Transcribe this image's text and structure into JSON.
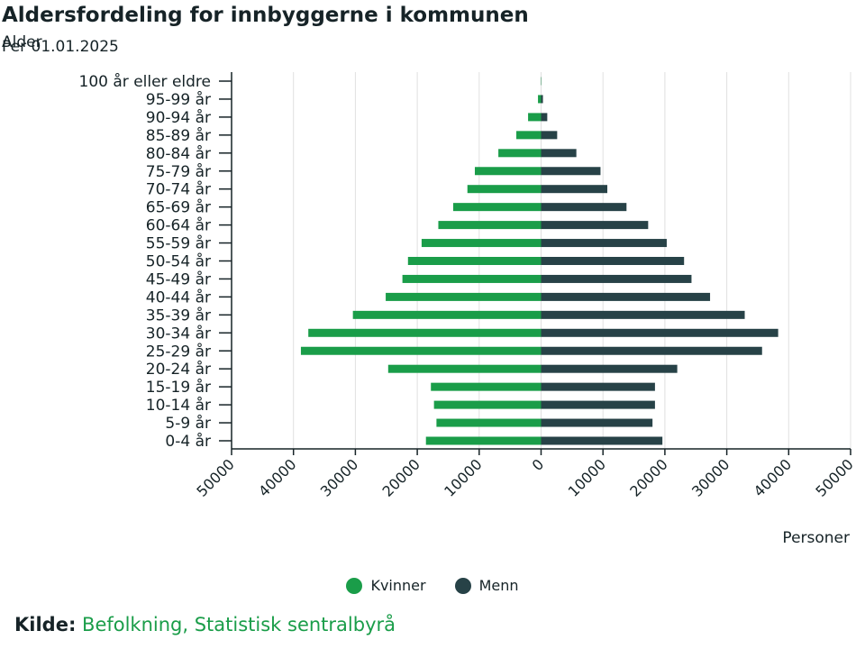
{
  "header": {
    "title": "Aldersfordeling for innbyggerne i kommunen",
    "subtitle": "Per 01.01.2025"
  },
  "colors": {
    "female": "#1a9d49",
    "male": "#274247",
    "grid": "#e0e0e0",
    "axis": "#162327"
  },
  "chart_data": {
    "type": "bar",
    "orientation": "horizontal-population-pyramid",
    "title": "Aldersfordeling for innbyggerne i kommunen",
    "subtitle": "Per 01.01.2025",
    "ylabel": "Alder",
    "xlabel": "Personer",
    "xlim": [
      -50000,
      50000
    ],
    "xticks": [
      -50000,
      -40000,
      -30000,
      -20000,
      -10000,
      0,
      10000,
      20000,
      30000,
      40000,
      50000
    ],
    "xtick_labels": [
      "50000",
      "40000",
      "30000",
      "20000",
      "10000",
      "0",
      "10000",
      "20000",
      "30000",
      "40000",
      "50000"
    ],
    "categories": [
      "100 år eller eldre",
      "95-99 år",
      "90-94 år",
      "85-89 år",
      "80-84 år",
      "75-79 år",
      "70-74 år",
      "65-69 år",
      "60-64 år",
      "55-59 år",
      "50-54 år",
      "45-49 år",
      "40-44 år",
      "35-39 år",
      "30-34 år",
      "25-29 år",
      "20-24 år",
      "15-19 år",
      "10-14 år",
      "5-9 år",
      "0-4 år"
    ],
    "series": [
      {
        "name": "Kvinner",
        "values": [
          50,
          500,
          2100,
          4000,
          6900,
          10700,
          11900,
          14200,
          16600,
          19300,
          21500,
          22400,
          25100,
          30400,
          37600,
          38800,
          24700,
          17800,
          17300,
          16900,
          18600
        ]
      },
      {
        "name": "Menn",
        "values": [
          20,
          300,
          1000,
          2600,
          5700,
          9600,
          10700,
          13800,
          17300,
          20300,
          23100,
          24300,
          27300,
          32900,
          38300,
          35700,
          22000,
          18400,
          18400,
          18000,
          19600
        ]
      }
    ],
    "legend": "bottom-center"
  },
  "legend": {
    "items": [
      "Kvinner",
      "Menn"
    ]
  },
  "source": {
    "label": "Kilde:",
    "text": "Befolkning, Statistisk sentralbyrå"
  }
}
